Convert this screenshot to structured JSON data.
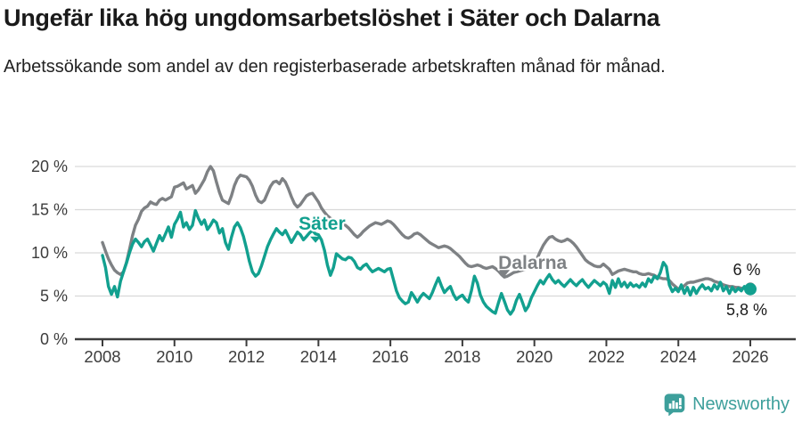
{
  "header": {
    "title": "Ungefär lika hög ungdomsarbetslöshet i Säter och Dalarna",
    "subtitle": "Arbetssökande som andel av den registerbaserade arbetskraften månad för månad."
  },
  "footer": {
    "brand": "Newsworthy"
  },
  "colors": {
    "sater": "#12a08f",
    "dalarna": "#7e8184",
    "grid": "#d9d9d9",
    "axis": "#3c3c3c",
    "tick_text": "#3c3c3c",
    "end_label_text": "#1a1a1a",
    "brand": "#3d9f9b"
  },
  "chart_data": {
    "type": "line",
    "title": "Ungefär lika hög ungdomsarbetslöshet i Säter och Dalarna",
    "subtitle": "Arbetssökande som andel av den registerbaserade arbetskraften månad för månad.",
    "x_unit": "month",
    "x_start_year": 2008,
    "x_start_month": 1,
    "ylim": [
      0,
      21
    ],
    "grid": true,
    "y_axis": {
      "ticks": [
        {
          "value": 0,
          "label": "0 %"
        },
        {
          "value": 5,
          "label": "5 %"
        },
        {
          "value": 10,
          "label": "10 %"
        },
        {
          "value": 15,
          "label": "15 %"
        },
        {
          "value": 20,
          "label": "20 %"
        }
      ]
    },
    "x_axis": {
      "ticks": [
        {
          "value": 2008,
          "label": "2008"
        },
        {
          "value": 2010,
          "label": "2010"
        },
        {
          "value": 2012,
          "label": "2012"
        },
        {
          "value": 2014,
          "label": "2014"
        },
        {
          "value": 2016,
          "label": "2016"
        },
        {
          "value": 2018,
          "label": "2018"
        },
        {
          "value": 2020,
          "label": "2020"
        },
        {
          "value": 2022,
          "label": "2022"
        },
        {
          "value": 2024,
          "label": "2024"
        },
        {
          "value": 2026,
          "label": "2026"
        }
      ]
    },
    "series": [
      {
        "id": "dalarna",
        "name": "Dalarna",
        "color": "#7e8184",
        "end_label": "6 %",
        "end_value": 6.0,
        "end_dot_radius": 5.5,
        "values": [
          11.2,
          10.2,
          9.3,
          8.6,
          8.0,
          7.7,
          7.5,
          7.8,
          8.9,
          10.4,
          12.0,
          13.2,
          13.9,
          14.8,
          15.2,
          15.4,
          15.9,
          15.7,
          15.6,
          16.1,
          16.3,
          16.1,
          16.3,
          16.5,
          17.6,
          17.7,
          17.9,
          18.1,
          17.4,
          17.6,
          17.8,
          16.9,
          17.3,
          17.9,
          18.5,
          19.4,
          20.0,
          19.5,
          18.2,
          17.0,
          16.1,
          15.9,
          15.7,
          16.6,
          17.8,
          18.6,
          19.0,
          18.9,
          18.8,
          18.4,
          17.7,
          16.7,
          16.0,
          15.8,
          16.1,
          16.9,
          17.7,
          18.2,
          18.3,
          18.0,
          18.6,
          18.2,
          17.4,
          16.5,
          15.7,
          15.3,
          15.6,
          16.1,
          16.6,
          16.8,
          16.9,
          16.4,
          15.9,
          15.2,
          14.7,
          14.3,
          14.0,
          13.8,
          13.6,
          13.4,
          13.5,
          13.2,
          12.9,
          12.5,
          12.1,
          11.8,
          12.1,
          12.5,
          12.8,
          13.1,
          13.3,
          13.5,
          13.4,
          13.3,
          13.5,
          13.7,
          13.6,
          13.3,
          12.9,
          12.5,
          12.1,
          11.8,
          11.7,
          11.9,
          12.2,
          12.3,
          12.1,
          11.8,
          11.5,
          11.2,
          11.0,
          10.8,
          10.6,
          10.7,
          10.8,
          10.7,
          10.5,
          10.2,
          9.9,
          9.6,
          9.2,
          8.8,
          8.5,
          8.4,
          8.5,
          8.6,
          8.5,
          8.3,
          8.2,
          8.3,
          8.4,
          8.2,
          7.9,
          7.5,
          7.2,
          7.3,
          7.5,
          7.7,
          7.8,
          7.9,
          8.0,
          8.1,
          8.3,
          8.6,
          8.9,
          9.4,
          10.2,
          10.9,
          11.4,
          11.8,
          11.9,
          11.6,
          11.4,
          11.3,
          11.4,
          11.6,
          11.4,
          11.1,
          10.7,
          10.2,
          9.7,
          9.2,
          8.9,
          8.7,
          8.5,
          8.4,
          8.4,
          8.7,
          8.4,
          8.1,
          7.5,
          7.7,
          7.9,
          8.0,
          8.1,
          8.0,
          7.9,
          7.8,
          7.8,
          7.6,
          7.5,
          7.5,
          7.6,
          7.5,
          7.4,
          7.2,
          7.1,
          7.0,
          7.0,
          6.8,
          6.4,
          6.1,
          5.8,
          5.9,
          6.2,
          6.5,
          6.6,
          6.6,
          6.7,
          6.8,
          6.9,
          7.0,
          7.0,
          6.9,
          6.7,
          6.6,
          6.5,
          6.3,
          6.2,
          6.1,
          6.1,
          6.0,
          6.0,
          5.9,
          5.9,
          5.9,
          6.0
        ]
      },
      {
        "id": "sater",
        "name": "Säter",
        "color": "#12a08f",
        "end_label": "5,8 %",
        "end_value": 5.8,
        "end_dot_radius": 7,
        "values": [
          9.7,
          8.3,
          6.1,
          5.2,
          6.1,
          4.9,
          6.7,
          7.8,
          8.8,
          10.0,
          11.0,
          11.6,
          11.2,
          10.7,
          11.3,
          11.6,
          10.9,
          10.2,
          11.1,
          12.0,
          11.4,
          12.2,
          13.0,
          11.8,
          13.3,
          13.9,
          14.7,
          13.0,
          13.5,
          12.7,
          13.2,
          14.9,
          14.0,
          13.3,
          13.8,
          12.7,
          13.2,
          13.8,
          13.5,
          12.3,
          12.8,
          11.2,
          10.4,
          11.8,
          13.0,
          13.5,
          12.9,
          11.9,
          10.5,
          9.0,
          7.8,
          7.3,
          7.6,
          8.5,
          9.6,
          10.7,
          11.5,
          12.2,
          12.8,
          12.4,
          12.1,
          12.6,
          11.9,
          11.2,
          11.8,
          12.4,
          12.1,
          11.5,
          11.9,
          12.3,
          12.6,
          12.2,
          12.1,
          11.5,
          10.3,
          8.6,
          7.4,
          8.3,
          9.9,
          9.6,
          9.3,
          9.2,
          9.5,
          9.4,
          9.0,
          8.3,
          8.1,
          8.5,
          8.7,
          8.2,
          7.8,
          8.0,
          8.2,
          8.0,
          7.8,
          8.1,
          8.2,
          6.9,
          5.6,
          4.8,
          4.4,
          4.1,
          4.3,
          5.4,
          4.9,
          4.3,
          4.9,
          5.3,
          5.0,
          4.7,
          5.4,
          6.3,
          7.1,
          6.2,
          5.4,
          5.8,
          6.1,
          5.2,
          4.6,
          4.9,
          5.1,
          4.6,
          4.3,
          5.6,
          7.3,
          6.5,
          5.1,
          4.3,
          3.8,
          3.5,
          3.2,
          3.0,
          4.2,
          5.3,
          4.4,
          3.4,
          2.9,
          3.4,
          4.5,
          5.2,
          4.3,
          3.3,
          3.8,
          4.8,
          5.5,
          6.2,
          6.8,
          6.4,
          7.0,
          7.5,
          6.9,
          6.5,
          6.8,
          6.4,
          6.1,
          6.5,
          6.9,
          6.5,
          6.2,
          6.6,
          6.9,
          6.4,
          6.0,
          6.4,
          6.8,
          6.5,
          6.2,
          6.6,
          6.3,
          5.3,
          6.8,
          6.0,
          7.0,
          6.1,
          6.6,
          6.0,
          6.5,
          6.1,
          6.3,
          6.0,
          6.5,
          6.1,
          7.0,
          6.6,
          7.3,
          7.0,
          7.7,
          8.9,
          8.4,
          6.3,
          5.5,
          5.9,
          5.5,
          6.3,
          5.3,
          6.0,
          5.1,
          6.0,
          5.3,
          5.9,
          6.3,
          5.8,
          6.0,
          5.6,
          6.3,
          5.8,
          6.6,
          5.6,
          6.1,
          5.3,
          6.0,
          5.5,
          5.9,
          5.6,
          6.1,
          5.5,
          5.8
        ]
      }
    ],
    "annotations": [
      {
        "text": "Säter",
        "series_id": "sater",
        "year": 2014.1,
        "value": 13.35,
        "caret_year": 2013.92,
        "caret_value": 11.15
      },
      {
        "text": "Dalarna",
        "series_id": "dalarna",
        "year": 2019.95,
        "value": 8.8,
        "caret_year": 2019.17,
        "caret_value": 7.3
      }
    ],
    "end_labels": [
      {
        "text": "6 %",
        "series_id": "dalarna",
        "year": 2025.9,
        "value": 8.05
      },
      {
        "text": "5,8 %",
        "series_id": "sater",
        "year": 2025.9,
        "value": 3.4
      }
    ],
    "legend_position": "inline-labels"
  }
}
